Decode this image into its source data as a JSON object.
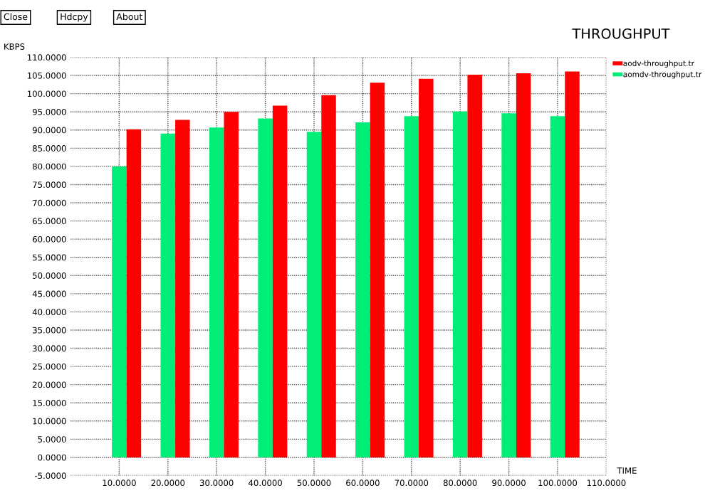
{
  "chart_data": {
    "type": "bar",
    "title": "THROUGHPUT",
    "xlabel": "TIME",
    "ylabel": "KBPS",
    "annotations": [
      "Close",
      "Hdcpy",
      "About"
    ],
    "x": [
      10,
      20,
      30,
      40,
      50,
      60,
      70,
      80,
      90,
      100
    ],
    "series": [
      {
        "name": "aodv-throughput.tr",
        "color": "#ff0000",
        "values": [
          90.2,
          92.8,
          95.0,
          96.7,
          99.6,
          103.0,
          104.1,
          105.2,
          105.6,
          106.1
        ]
      },
      {
        "name": "aomdv-throughput.tr",
        "color": "#00ee77",
        "values": [
          80.0,
          89.0,
          90.7,
          93.2,
          89.5,
          92.1,
          93.8,
          95.1,
          94.6,
          93.8
        ]
      }
    ],
    "xlim": [
      0,
      110
    ],
    "xticks": [
      {
        "value": 10,
        "label": "10.0000"
      },
      {
        "value": 20,
        "label": "20.0000"
      },
      {
        "value": 30,
        "label": "30.0000"
      },
      {
        "value": 40,
        "label": "40.0000"
      },
      {
        "value": 50,
        "label": "50.0000"
      },
      {
        "value": 60,
        "label": "60.0000"
      },
      {
        "value": 70,
        "label": "70.0000"
      },
      {
        "value": 80,
        "label": "80.0000"
      },
      {
        "value": 90,
        "label": "90.0000"
      },
      {
        "value": 100,
        "label": "100.0000"
      },
      {
        "value": 110,
        "label": "110.0000"
      }
    ],
    "ylim": [
      -5,
      110
    ],
    "yticks": [
      {
        "value": -5,
        "label": "-5.0000"
      },
      {
        "value": 0,
        "label": "0.0000"
      },
      {
        "value": 5,
        "label": "5.0000"
      },
      {
        "value": 10,
        "label": "10.0000"
      },
      {
        "value": 15,
        "label": "15.0000"
      },
      {
        "value": 20,
        "label": "20.0000"
      },
      {
        "value": 25,
        "label": "25.0000"
      },
      {
        "value": 30,
        "label": "30.0000"
      },
      {
        "value": 35,
        "label": "35.0000"
      },
      {
        "value": 40,
        "label": "40.0000"
      },
      {
        "value": 45,
        "label": "45.0000"
      },
      {
        "value": 50,
        "label": "50.0000"
      },
      {
        "value": 55,
        "label": "55.0000"
      },
      {
        "value": 60,
        "label": "60.0000"
      },
      {
        "value": 65,
        "label": "65.0000"
      },
      {
        "value": 70,
        "label": "70.0000"
      },
      {
        "value": 75,
        "label": "75.0000"
      },
      {
        "value": 80,
        "label": "80.0000"
      },
      {
        "value": 85,
        "label": "85.0000"
      },
      {
        "value": 90,
        "label": "90.0000"
      },
      {
        "value": 95,
        "label": "95.0000"
      },
      {
        "value": 100,
        "label": "100.0000"
      },
      {
        "value": 105,
        "label": "105.0000"
      },
      {
        "value": 110,
        "label": "110.0000"
      }
    ],
    "grid": true,
    "legend": "top right"
  }
}
